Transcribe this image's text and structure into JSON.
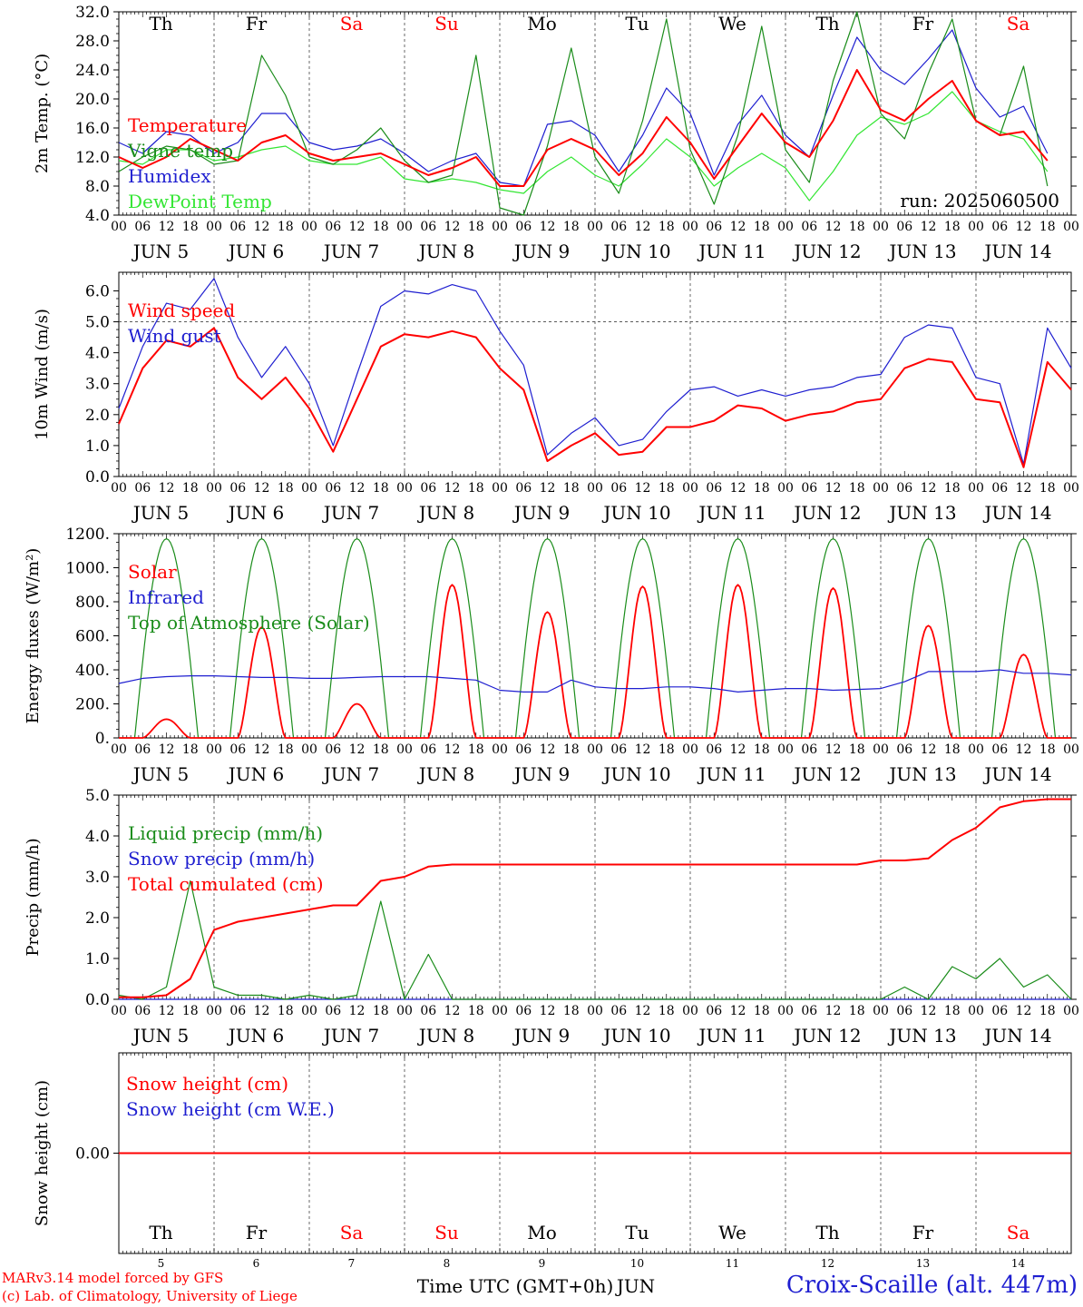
{
  "time_axis": {
    "hour_ticks": [
      "00",
      "06",
      "12",
      "18"
    ],
    "date_labels": [
      "JUN  5",
      "JUN  6",
      "JUN  7",
      "JUN  8",
      "JUN  9",
      "JUN 10",
      "JUN 11",
      "JUN 12",
      "JUN 13",
      "JUN 14"
    ],
    "days": [
      "Th",
      "Fr",
      "Sa",
      "Su",
      "Mo",
      "Tu",
      "We",
      "Th",
      "Fr",
      "Sa"
    ],
    "day_colors": [
      "#000000",
      "#000000",
      "#ff0000",
      "#ff0000",
      "#000000",
      "#000000",
      "#000000",
      "#000000",
      "#000000",
      "#ff0000"
    ],
    "day_numbers": [
      "5",
      "6",
      "7",
      "8",
      "9",
      "10",
      "11",
      "12",
      "13",
      "14"
    ],
    "xlabel": "Time UTC (GMT+0h)",
    "month": "JUN",
    "range_hours": [
      0,
      240
    ]
  },
  "run_label": "run: 2025060500",
  "footer": {
    "credit_line1": "MARv3.14 model forced by GFS",
    "credit_line2": "(c) Lab. of Climatology, University of Liege",
    "station": "Croix-Scaille (alt. 447m)"
  },
  "colors": {
    "red": "#ff0000",
    "green": "#1a8c1a",
    "blue": "#1f1fd0",
    "lightgreen": "#33e633",
    "grid": "#444444"
  },
  "chart_data": [
    {
      "id": "temperature",
      "type": "line",
      "ylabel": "2m Temp. (°C)",
      "ylim": [
        4,
        32
      ],
      "yticks": [
        "4.0",
        "8.0",
        "12.0",
        "16.0",
        "20.0",
        "24.0",
        "28.0",
        "32.0"
      ],
      "x_step_hours": 6,
      "series": [
        {
          "name": "Temperature",
          "color": "#ff0000",
          "values": [
            12,
            10.5,
            12,
            14.5,
            13,
            11.5,
            14,
            15,
            12.5,
            11.5,
            12,
            12.5,
            11,
            9.5,
            10.5,
            12,
            8,
            8,
            13,
            14.5,
            13,
            9.5,
            12.5,
            17.5,
            14,
            9,
            13.5,
            18,
            14,
            12,
            17,
            24,
            18.5,
            17,
            20,
            22.5,
            17,
            15,
            15.5,
            11.5
          ]
        },
        {
          "name": "Vigne temp",
          "color": "#1a8c1a",
          "values": [
            10,
            12,
            13.5,
            13,
            11,
            11.5,
            26,
            20.5,
            12,
            11,
            13,
            16,
            11.5,
            8.5,
            9.5,
            26,
            5,
            4,
            13.5,
            27,
            12,
            7,
            17,
            31,
            13,
            5.5,
            15,
            30,
            13,
            8.5,
            22.5,
            32,
            18,
            14.5,
            23.5,
            31,
            17,
            15,
            24.5,
            8
          ]
        },
        {
          "name": "Humidex",
          "color": "#1f1fd0",
          "values": [
            14,
            12.5,
            15.5,
            15,
            12.5,
            14,
            18,
            18,
            14,
            13,
            13.5,
            14.5,
            12.5,
            10,
            11.5,
            12.5,
            8.5,
            8,
            16.5,
            17,
            15,
            10,
            15,
            21.5,
            18,
            9.5,
            16.5,
            20.5,
            15,
            12,
            20.5,
            28.5,
            24,
            22,
            25.5,
            29.5,
            21.5,
            17.5,
            19,
            12.5
          ]
        },
        {
          "name": "DewPoint Temp",
          "color": "#33e633",
          "values": [
            11.5,
            11,
            13,
            13,
            11.5,
            12,
            13,
            13.5,
            11.5,
            11,
            11,
            12,
            9,
            8.5,
            9,
            8.5,
            7.5,
            7,
            10,
            12,
            9.5,
            8,
            11,
            14.5,
            12,
            8,
            10.5,
            12.5,
            10.5,
            6,
            10,
            15,
            17.5,
            16.5,
            18,
            21,
            17,
            15.5,
            14.5,
            10
          ]
        }
      ]
    },
    {
      "id": "wind",
      "type": "line",
      "ylabel": "10m Wind (m/s)",
      "ylim": [
        0,
        6.6
      ],
      "yticks": [
        "0.0",
        "1.0",
        "2.0",
        "3.0",
        "4.0",
        "5.0",
        "6.0"
      ],
      "reference_line": 5.0,
      "x_step_hours": 6,
      "series": [
        {
          "name": "Wind speed",
          "color": "#ff0000",
          "values": [
            1.7,
            3.5,
            4.4,
            4.2,
            4.8,
            3.2,
            2.5,
            3.2,
            2.2,
            0.8,
            2.5,
            4.2,
            4.6,
            4.5,
            4.7,
            4.5,
            3.5,
            2.8,
            0.5,
            1.0,
            1.4,
            0.7,
            0.8,
            1.6,
            1.6,
            1.8,
            2.3,
            2.2,
            1.8,
            2.0,
            2.1,
            2.4,
            2.5,
            3.5,
            3.8,
            3.7,
            2.5,
            2.4,
            0.3,
            3.7,
            2.8
          ]
        },
        {
          "name": "Wind gust",
          "color": "#1f1fd0",
          "values": [
            2.2,
            4.2,
            5.6,
            5.4,
            6.4,
            4.5,
            3.2,
            4.2,
            3.0,
            1.0,
            3.3,
            5.5,
            6.0,
            5.9,
            6.2,
            6.0,
            4.7,
            3.6,
            0.7,
            1.4,
            1.9,
            1.0,
            1.2,
            2.1,
            2.8,
            2.9,
            2.6,
            2.8,
            2.6,
            2.8,
            2.9,
            3.2,
            3.3,
            4.5,
            4.9,
            4.8,
            3.2,
            3.0,
            0.4,
            4.8,
            3.5
          ]
        }
      ]
    },
    {
      "id": "energy",
      "type": "line",
      "ylabel": "Energy fluxes (W/m²)",
      "ylim": [
        0,
        1200
      ],
      "yticks": [
        "0.",
        "200.",
        "400.",
        "600.",
        "800.",
        "1000.",
        "1200."
      ],
      "x_step_hours": 6,
      "series": [
        {
          "name": "Solar",
          "color": "#ff0000",
          "peaks": [
            110,
            650,
            200,
            900,
            740,
            890,
            900,
            880,
            660,
            490
          ]
        },
        {
          "name": "Infrared",
          "color": "#1f1fd0",
          "values": [
            320,
            350,
            360,
            365,
            365,
            360,
            355,
            355,
            350,
            350,
            355,
            360,
            360,
            360,
            350,
            340,
            280,
            270,
            270,
            340,
            300,
            290,
            290,
            300,
            300,
            290,
            270,
            280,
            290,
            290,
            280,
            285,
            290,
            330,
            390,
            390,
            390,
            400,
            380,
            380,
            370
          ]
        },
        {
          "name": "Top of Atmosphere (Solar)",
          "color": "#1a8c1a",
          "peak": 1170
        }
      ]
    },
    {
      "id": "precip",
      "type": "line",
      "ylabel": "Precip (mm/h)",
      "ylim": [
        0,
        5
      ],
      "yticks": [
        "0.0",
        "1.0",
        "2.0",
        "3.0",
        "4.0",
        "5.0"
      ],
      "x_step_hours": 6,
      "series": [
        {
          "name": "Liquid precip (mm/h)",
          "color": "#1a8c1a",
          "values": [
            0.1,
            0.0,
            0.3,
            2.9,
            0.3,
            0.1,
            0.1,
            0.0,
            0.1,
            0.0,
            0.1,
            2.4,
            0.0,
            1.1,
            0.0,
            0.0,
            0.0,
            0.0,
            0.0,
            0.0,
            0.0,
            0.0,
            0.0,
            0.0,
            0.0,
            0.0,
            0.0,
            0.0,
            0.0,
            0.0,
            0.0,
            0.0,
            0.0,
            0.3,
            0.0,
            0.8,
            0.5,
            1.0,
            0.3,
            0.6,
            0.0
          ]
        },
        {
          "name": "Snow precip (mm/h)",
          "color": "#1f1fd0",
          "values": [
            0,
            0,
            0,
            0,
            0,
            0,
            0,
            0,
            0,
            0,
            0,
            0,
            0,
            0,
            0,
            0,
            0,
            0,
            0,
            0,
            0,
            0,
            0,
            0,
            0,
            0,
            0,
            0,
            0,
            0,
            0,
            0,
            0,
            0,
            0,
            0,
            0,
            0,
            0,
            0,
            0
          ]
        },
        {
          "name": "Total cumulated (cm)",
          "color": "#ff0000",
          "values": [
            0.05,
            0.05,
            0.1,
            0.5,
            1.7,
            1.9,
            2.0,
            2.1,
            2.2,
            2.3,
            2.3,
            2.9,
            3.0,
            3.25,
            3.3,
            3.3,
            3.3,
            3.3,
            3.3,
            3.3,
            3.3,
            3.3,
            3.3,
            3.3,
            3.3,
            3.3,
            3.3,
            3.3,
            3.3,
            3.3,
            3.3,
            3.3,
            3.4,
            3.4,
            3.45,
            3.9,
            4.2,
            4.7,
            4.85,
            4.9,
            4.9
          ]
        }
      ]
    },
    {
      "id": "snow",
      "type": "line",
      "ylabel": "Snow height (cm)",
      "ylim": [
        -1,
        1
      ],
      "yticks": [
        "0.00"
      ],
      "x_step_hours": 6,
      "series": [
        {
          "name": "Snow height (cm)",
          "color": "#ff0000",
          "values": [
            0,
            0,
            0,
            0,
            0,
            0,
            0,
            0,
            0,
            0,
            0,
            0,
            0,
            0,
            0,
            0,
            0,
            0,
            0,
            0,
            0,
            0,
            0,
            0,
            0,
            0,
            0,
            0,
            0,
            0,
            0,
            0,
            0,
            0,
            0,
            0,
            0,
            0,
            0,
            0,
            0
          ]
        },
        {
          "name": "Snow height (cm W.E.)",
          "color": "#1f1fd0",
          "values": [
            0,
            0,
            0,
            0,
            0,
            0,
            0,
            0,
            0,
            0,
            0,
            0,
            0,
            0,
            0,
            0,
            0,
            0,
            0,
            0,
            0,
            0,
            0,
            0,
            0,
            0,
            0,
            0,
            0,
            0,
            0,
            0,
            0,
            0,
            0,
            0,
            0,
            0,
            0,
            0,
            0
          ]
        }
      ]
    }
  ]
}
